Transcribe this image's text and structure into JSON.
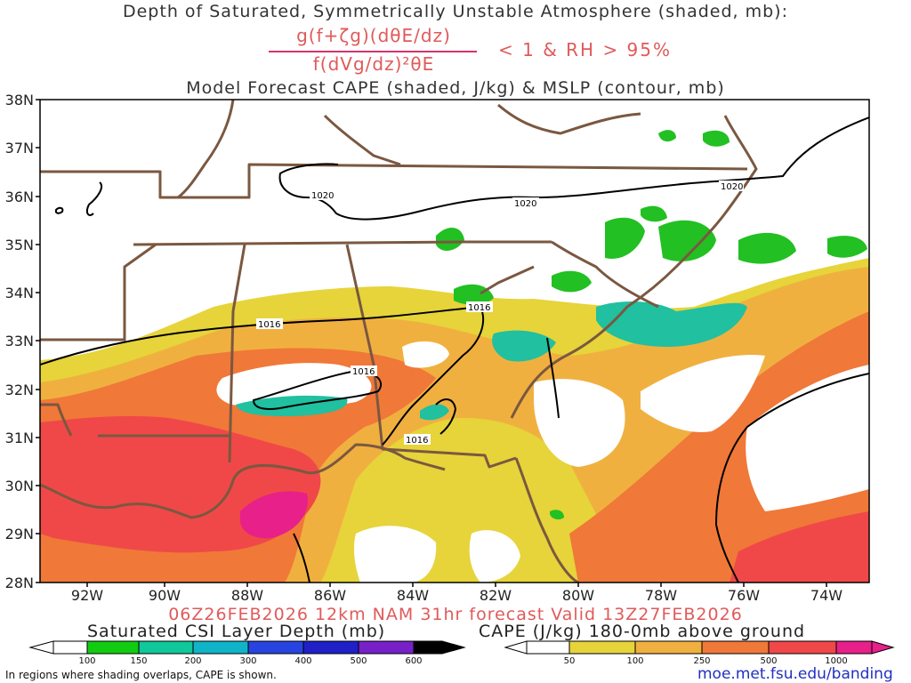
{
  "title": {
    "line1": "Depth of Saturated, Symmetrically Unstable Atmosphere (shaded, mb):",
    "numerator": "g(f+ζg)(dθE/dz)",
    "denominator": "f(dVg/dz)²θE",
    "condition": "< 1 & RH > 95%",
    "line2": "Model Forecast CAPE (shaded, J/kg) & MSLP (contour, mb)"
  },
  "map": {
    "lat_labels": [
      "38N",
      "37N",
      "36N",
      "35N",
      "34N",
      "33N",
      "32N",
      "31N",
      "30N",
      "29N",
      "28N"
    ],
    "lon_labels": [
      "92W",
      "90W",
      "88W",
      "86W",
      "84W",
      "82W",
      "80W",
      "78W",
      "76W",
      "74W"
    ],
    "isobar_labels": [
      "1020",
      "1020",
      "1020",
      "1016",
      "1016",
      "1016",
      "1016"
    ],
    "colors": {
      "cape_yellow": "#e6d43a",
      "cape_light_orange": "#f0b040",
      "cape_orange": "#f07838",
      "cape_red": "#f04848",
      "cape_magenta": "#e8208a",
      "csi_green": "#22c022",
      "csi_teal": "#20c0a0",
      "border": "#7a5840"
    }
  },
  "valid_text": "06Z26FEB2026 12km NAM 31hr forecast Valid 13Z27FEB2026",
  "csi_legend": {
    "title": "Saturated CSI Layer Depth (mb)",
    "ticks": [
      "100",
      "150",
      "200",
      "300",
      "400",
      "500",
      "600"
    ],
    "colors": [
      "#ffffff",
      "#12cc12",
      "#10c89a",
      "#10b4c8",
      "#2844e0",
      "#2020c8",
      "#7820c8",
      "#000000"
    ]
  },
  "cape_legend": {
    "title": "CAPE (J/kg) 180-0mb above ground",
    "ticks": [
      "50",
      "100",
      "250",
      "500",
      "1000"
    ],
    "colors": [
      "#ffffff",
      "#e6d43a",
      "#f0b040",
      "#f07838",
      "#f04848",
      "#e8208a"
    ]
  },
  "footnote": "In regions where shading overlaps, CAPE is shown.",
  "url": "moe.met.fsu.edu/banding"
}
